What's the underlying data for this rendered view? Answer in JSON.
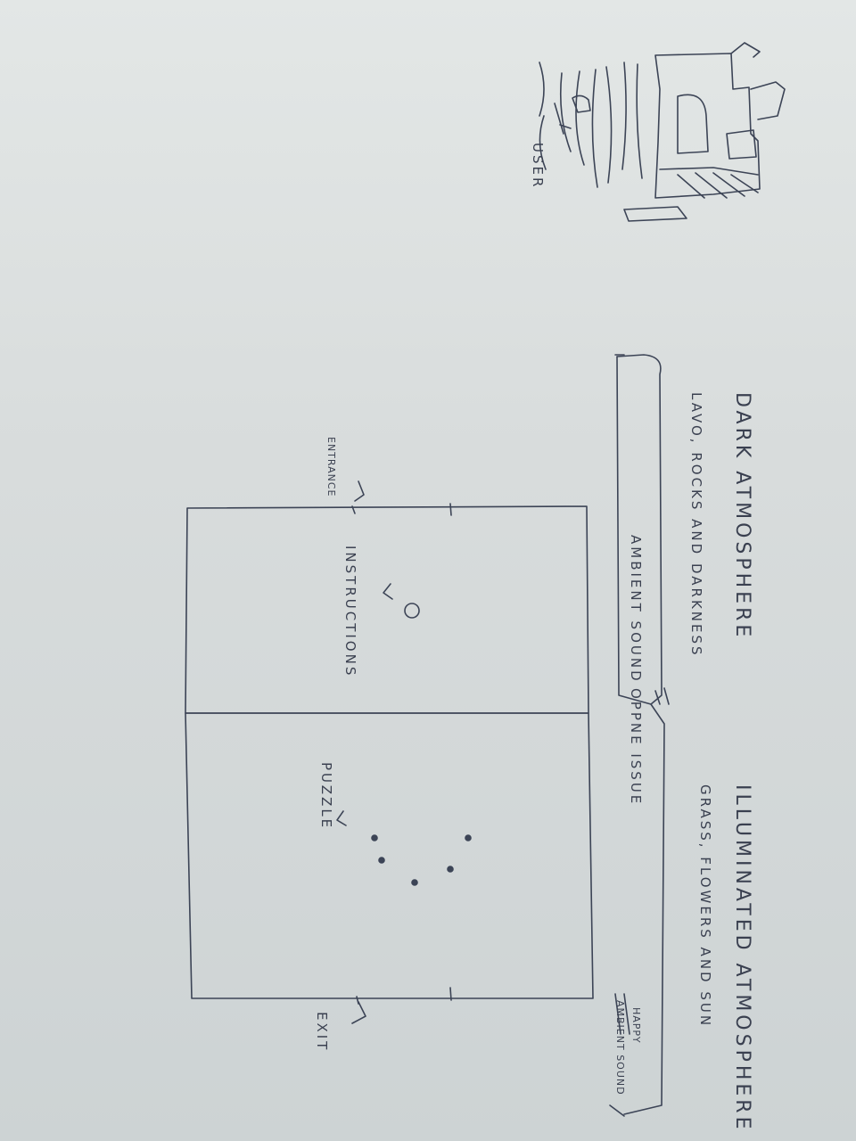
{
  "sketch": {
    "dark_zone": {
      "title": "DARK ATMOSPHERE",
      "description": "LAVO, ROCKS AND DARKNESS"
    },
    "light_zone": {
      "title": "ILLUMINATED ATMOSPHERE",
      "description": "GRASS, FLOWERS AND SUN"
    },
    "sound": {
      "ambient": "AMBIENT SOUND",
      "change": "OPPNE ISSUE",
      "happy_1": "HAPPY",
      "happy_2": "AMBIENT SOUND"
    },
    "room": {
      "entrance": "ENTRANCE",
      "instructions": "INSTRUCTIONS",
      "puzzle": "PUZZLE",
      "exit": "EXIT"
    },
    "castle": {
      "user": "USER"
    }
  }
}
